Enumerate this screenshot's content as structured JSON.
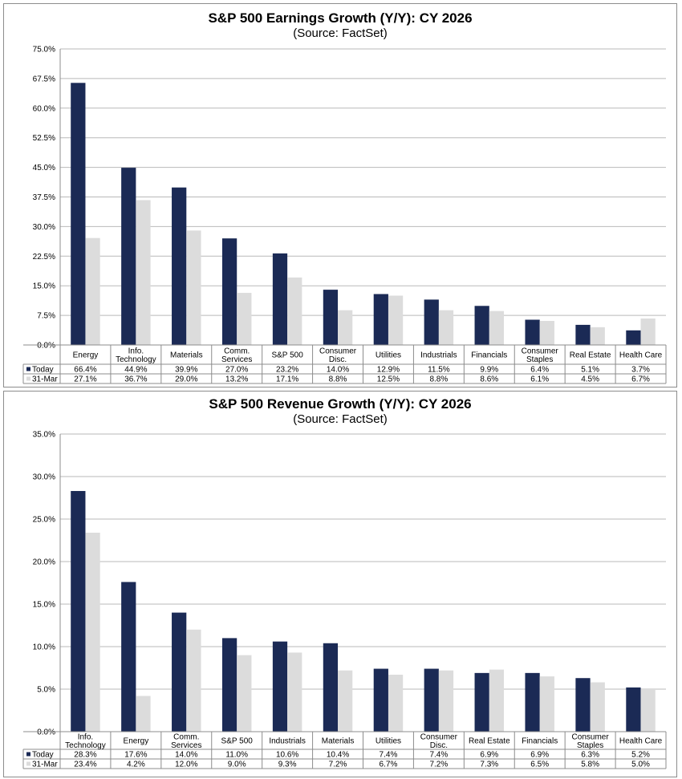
{
  "colors": {
    "today": "#1b2a55",
    "mar31": "#dcdcdc",
    "grid": "#b9b9b9",
    "axis": "#8c8c8c"
  },
  "chart_data": [
    {
      "type": "bar",
      "title": "S&P 500 Earnings Growth (Y/Y): CY 2026",
      "subtitle": "(Source: FactSet)",
      "categories": [
        [
          "Energy"
        ],
        [
          "Info.",
          "Technology"
        ],
        [
          "Materials"
        ],
        [
          "Comm.",
          "Services"
        ],
        [
          "S&P 500"
        ],
        [
          "Consumer",
          "Disc."
        ],
        [
          "Utilities"
        ],
        [
          "Industrials"
        ],
        [
          "Financials"
        ],
        [
          "Consumer",
          "Staples"
        ],
        [
          "Real Estate"
        ],
        [
          "Health Care"
        ]
      ],
      "series": [
        {
          "name": "Today",
          "values": [
            66.4,
            44.9,
            39.9,
            27.0,
            23.2,
            14.0,
            12.9,
            11.5,
            9.9,
            6.4,
            5.1,
            3.7
          ],
          "labels": [
            "66.4%",
            "44.9%",
            "39.9%",
            "27.0%",
            "23.2%",
            "14.0%",
            "12.9%",
            "11.5%",
            "9.9%",
            "6.4%",
            "5.1%",
            "3.7%"
          ]
        },
        {
          "name": "31-Mar",
          "values": [
            27.1,
            36.7,
            29.0,
            13.2,
            17.1,
            8.8,
            12.5,
            8.8,
            8.6,
            6.1,
            4.5,
            6.7
          ],
          "labels": [
            "27.1%",
            "36.7%",
            "29.0%",
            "13.2%",
            "17.1%",
            "8.8%",
            "12.5%",
            "8.8%",
            "8.6%",
            "6.1%",
            "4.5%",
            "6.7%"
          ]
        }
      ],
      "ylim": [
        0,
        75
      ],
      "yticks": [
        "0.0%",
        "7.5%",
        "15.0%",
        "22.5%",
        "30.0%",
        "37.5%",
        "45.0%",
        "52.5%",
        "60.0%",
        "67.5%",
        "75.0%"
      ],
      "grid": true,
      "legend": "data-table"
    },
    {
      "type": "bar",
      "title": "S&P 500 Revenue Growth (Y/Y): CY 2026",
      "subtitle": "(Source: FactSet)",
      "categories": [
        [
          "Info.",
          "Technology"
        ],
        [
          "Energy"
        ],
        [
          "Comm.",
          "Services"
        ],
        [
          "S&P 500"
        ],
        [
          "Industrials"
        ],
        [
          "Materials"
        ],
        [
          "Utilities"
        ],
        [
          "Consumer",
          "Disc."
        ],
        [
          "Real Estate"
        ],
        [
          "Financials"
        ],
        [
          "Consumer",
          "Staples"
        ],
        [
          "Health Care"
        ]
      ],
      "series": [
        {
          "name": "Today",
          "values": [
            28.3,
            17.6,
            14.0,
            11.0,
            10.6,
            10.4,
            7.4,
            7.4,
            6.9,
            6.9,
            6.3,
            5.2
          ],
          "labels": [
            "28.3%",
            "17.6%",
            "14.0%",
            "11.0%",
            "10.6%",
            "10.4%",
            "7.4%",
            "7.4%",
            "6.9%",
            "6.9%",
            "6.3%",
            "5.2%"
          ]
        },
        {
          "name": "31-Mar",
          "values": [
            23.4,
            4.2,
            12.0,
            9.0,
            9.3,
            7.2,
            6.7,
            7.2,
            7.3,
            6.5,
            5.8,
            5.0
          ],
          "labels": [
            "23.4%",
            "4.2%",
            "12.0%",
            "9.0%",
            "9.3%",
            "7.2%",
            "6.7%",
            "7.2%",
            "7.3%",
            "6.5%",
            "5.8%",
            "5.0%"
          ]
        }
      ],
      "ylim": [
        0,
        35
      ],
      "yticks": [
        "0.0%",
        "5.0%",
        "10.0%",
        "15.0%",
        "20.0%",
        "25.0%",
        "30.0%",
        "35.0%"
      ],
      "grid": true,
      "legend": "data-table"
    }
  ]
}
